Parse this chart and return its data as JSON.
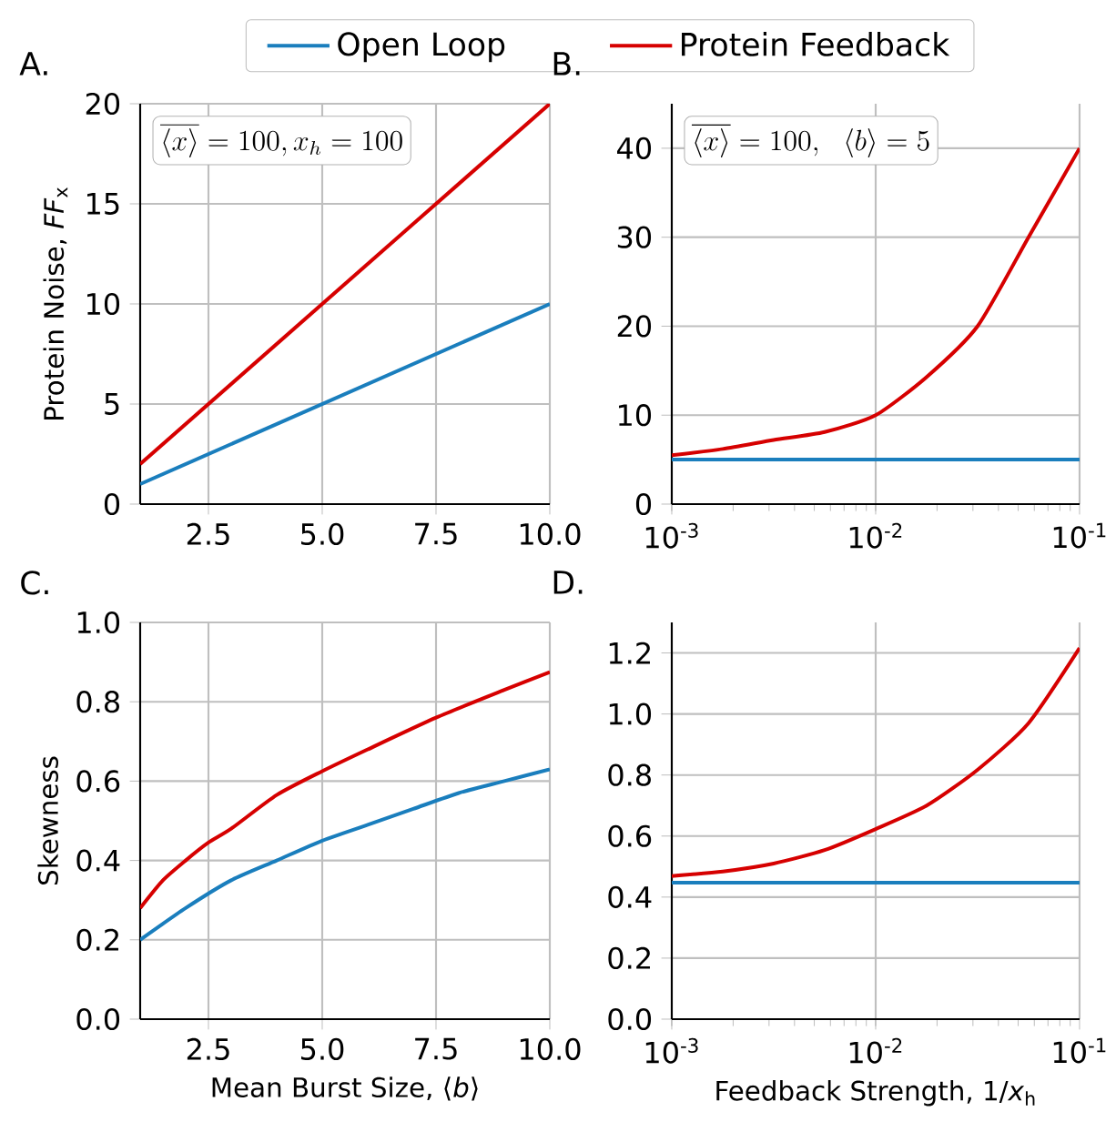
{
  "chart_data": [
    {
      "type": "line",
      "title": "A.",
      "ylabel": "Protein Noise, *FF*$_{x}$",
      "xlim": [
        1,
        10
      ],
      "ylim": [
        0,
        20
      ],
      "xticks": [
        {
          "value": 2.5,
          "label": "2.5"
        },
        {
          "value": 5,
          "label": "5.0"
        },
        {
          "value": 7.5,
          "label": "7.5"
        },
        {
          "value": 10,
          "label": "10.0"
        }
      ],
      "yticks": [
        0,
        5,
        10,
        15,
        20
      ],
      "grid": true,
      "legend": "top",
      "annotations": [
        "\\overline{\\langle x\\rangle}=100, x_h=100"
      ],
      "series": [
        {
          "name": "Open Loop",
          "color": "#1a7ebd",
          "x": [
            1,
            10
          ],
          "values": [
            1,
            10
          ]
        },
        {
          "name": "Protein Feedback",
          "color": "#d60000",
          "x": [
            1,
            10
          ],
          "values": [
            2,
            20
          ]
        }
      ]
    },
    {
      "type": "line",
      "title": "B.",
      "log": "x",
      "xlim": [
        0.001,
        0.1
      ],
      "ylim": [
        0,
        45
      ],
      "xticks": [
        {
          "value": 0.001,
          "label": "10$^{-3}$"
        },
        {
          "value": 0.01,
          "label": "10$^{-2}$"
        },
        {
          "value": 0.1,
          "label": "10$^{-1}$"
        }
      ],
      "yticks": [
        0,
        10,
        20,
        30,
        40
      ],
      "grid": true,
      "annotations": [
        "\\overline{\\langle x\\rangle}=100,\\ \\ \\langle b\\rangle=5"
      ],
      "series": [
        {
          "color": "#1a7ebd",
          "x": [
            0.001,
            0.1
          ],
          "values": [
            5,
            5
          ]
        },
        {
          "color": "#d60000",
          "x": [
            0.001,
            0.00178,
            0.00316,
            0.00562,
            0.01,
            0.0178,
            0.0316,
            0.0562,
            0.1
          ],
          "values": [
            5.5,
            6.2,
            7.2,
            8.1,
            10,
            14.3,
            20,
            30,
            40
          ]
        }
      ]
    },
    {
      "type": "line",
      "title": "C.",
      "xlabel": "Mean Burst Size, ⟨*b*⟩",
      "ylabel": "Skewness",
      "xlim": [
        1,
        10
      ],
      "ylim": [
        0,
        1
      ],
      "xticks": [
        {
          "value": 2.5,
          "label": "2.5"
        },
        {
          "value": 5,
          "label": "5.0"
        },
        {
          "value": 7.5,
          "label": "7.5"
        },
        {
          "value": 10,
          "label": "10.0"
        }
      ],
      "yticks": [
        {
          "value": 0,
          "label": "0.0"
        },
        {
          "value": 0.2,
          "label": "0.2"
        },
        {
          "value": 0.4,
          "label": "0.4"
        },
        {
          "value": 0.6,
          "label": "0.6"
        },
        {
          "value": 0.8,
          "label": "0.8"
        },
        {
          "value": 1,
          "label": "1.0"
        }
      ],
      "grid": true,
      "series": [
        {
          "color": "#1a7ebd",
          "x": [
            1,
            2,
            3,
            4,
            5,
            6,
            7,
            8,
            9,
            10
          ],
          "values": [
            0.2,
            0.28,
            0.35,
            0.4,
            0.45,
            0.49,
            0.53,
            0.57,
            0.6,
            0.63
          ]
        },
        {
          "color": "#d60000",
          "x": [
            1,
            1.5,
            2,
            2.5,
            3,
            4,
            5,
            6,
            7.5,
            9,
            10
          ],
          "values": [
            0.28,
            0.35,
            0.4,
            0.445,
            0.48,
            0.565,
            0.625,
            0.68,
            0.76,
            0.83,
            0.875
          ]
        }
      ]
    },
    {
      "type": "line",
      "title": "D.",
      "xlabel": "Feedback Strength, 1/*x*$_{h}$",
      "log": "x",
      "xlim": [
        0.001,
        0.1
      ],
      "ylim": [
        0,
        1.3
      ],
      "xticks": [
        {
          "value": 0.001,
          "label": "10$^{-3}$"
        },
        {
          "value": 0.01,
          "label": "10$^{-2}$"
        },
        {
          "value": 0.1,
          "label": "10$^{-1}$"
        }
      ],
      "yticks": [
        {
          "value": 0,
          "label": "0.0"
        },
        {
          "value": 0.2,
          "label": "0.2"
        },
        {
          "value": 0.4,
          "label": "0.4"
        },
        {
          "value": 0.6,
          "label": "0.6"
        },
        {
          "value": 0.8,
          "label": "0.8"
        },
        {
          "value": 1,
          "label": "1.0"
        },
        {
          "value": 1.2,
          "label": "1.2"
        }
      ],
      "grid": true,
      "series": [
        {
          "color": "#1a7ebd",
          "x": [
            0.001,
            0.1
          ],
          "values": [
            0.447,
            0.447
          ]
        },
        {
          "color": "#d60000",
          "x": [
            0.001,
            0.00178,
            0.00316,
            0.00562,
            0.01,
            0.0178,
            0.0316,
            0.0562,
            0.1
          ],
          "values": [
            0.469,
            0.484,
            0.51,
            0.554,
            0.623,
            0.7,
            0.817,
            0.97,
            1.216
          ]
        }
      ]
    }
  ]
}
